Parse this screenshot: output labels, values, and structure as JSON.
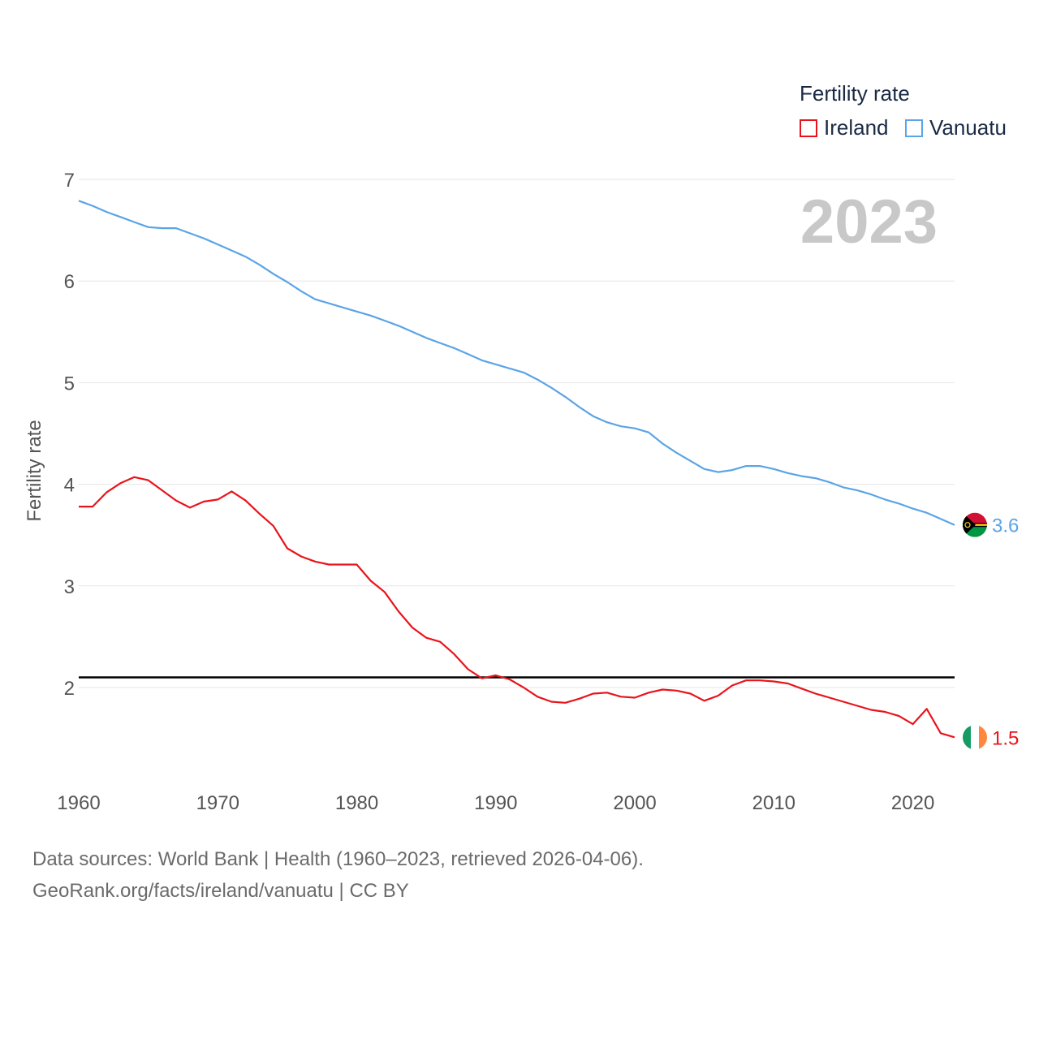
{
  "legend": {
    "title": "Fertility rate",
    "items": [
      {
        "label": "Ireland",
        "color": "#e8141b"
      },
      {
        "label": "Vanuatu",
        "color": "#5ba4e6"
      }
    ]
  },
  "year_label": "2023",
  "source": {
    "line1": "Data sources: World Bank | Health (1960–2023, retrieved 2026-04-06).",
    "line2": "GeoRank.org/facts/ireland/vanuatu | CC BY"
  },
  "chart_data": {
    "type": "line",
    "title": "Fertility rate",
    "xlabel": "",
    "ylabel": "Fertility rate",
    "xlim": [
      1960,
      2023
    ],
    "ylim": [
      1.3,
      7.0
    ],
    "xticks": [
      1960,
      1970,
      1980,
      1990,
      2000,
      2010,
      2020
    ],
    "yticks": [
      2,
      3,
      4,
      5,
      6,
      7
    ],
    "grid": true,
    "reference_line": 2.1,
    "x": [
      1960,
      1961,
      1962,
      1963,
      1964,
      1965,
      1966,
      1967,
      1968,
      1969,
      1970,
      1971,
      1972,
      1973,
      1974,
      1975,
      1976,
      1977,
      1978,
      1979,
      1980,
      1981,
      1982,
      1983,
      1984,
      1985,
      1986,
      1987,
      1988,
      1989,
      1990,
      1991,
      1992,
      1993,
      1994,
      1995,
      1996,
      1997,
      1998,
      1999,
      2000,
      2001,
      2002,
      2003,
      2004,
      2005,
      2006,
      2007,
      2008,
      2009,
      2010,
      2011,
      2012,
      2013,
      2014,
      2015,
      2016,
      2017,
      2018,
      2019,
      2020,
      2021,
      2022,
      2023
    ],
    "series": [
      {
        "name": "Ireland",
        "color": "#e8141b",
        "end_label": "1.5",
        "values": [
          3.78,
          3.78,
          3.92,
          4.01,
          4.07,
          4.04,
          3.94,
          3.84,
          3.77,
          3.83,
          3.85,
          3.93,
          3.84,
          3.71,
          3.59,
          3.37,
          3.29,
          3.24,
          3.21,
          3.21,
          3.21,
          3.05,
          2.94,
          2.75,
          2.59,
          2.49,
          2.45,
          2.33,
          2.18,
          2.09,
          2.12,
          2.08,
          2.0,
          1.91,
          1.86,
          1.85,
          1.89,
          1.94,
          1.95,
          1.91,
          1.9,
          1.95,
          1.98,
          1.97,
          1.94,
          1.87,
          1.92,
          2.02,
          2.07,
          2.07,
          2.06,
          2.04,
          1.99,
          1.94,
          1.9,
          1.86,
          1.82,
          1.78,
          1.76,
          1.72,
          1.64,
          1.79,
          1.55,
          1.51
        ]
      },
      {
        "name": "Vanuatu",
        "color": "#5ba4e6",
        "end_label": "3.6",
        "values": [
          6.79,
          6.74,
          6.68,
          6.63,
          6.58,
          6.53,
          6.52,
          6.52,
          6.47,
          6.42,
          6.36,
          6.3,
          6.24,
          6.16,
          6.07,
          5.99,
          5.9,
          5.82,
          5.78,
          5.74,
          5.7,
          5.66,
          5.61,
          5.56,
          5.5,
          5.44,
          5.39,
          5.34,
          5.28,
          5.22,
          5.18,
          5.14,
          5.1,
          5.03,
          4.95,
          4.86,
          4.76,
          4.67,
          4.61,
          4.57,
          4.55,
          4.51,
          4.4,
          4.31,
          4.23,
          4.15,
          4.12,
          4.14,
          4.18,
          4.18,
          4.15,
          4.11,
          4.08,
          4.06,
          4.02,
          3.97,
          3.94,
          3.9,
          3.85,
          3.81,
          3.76,
          3.72,
          3.66,
          3.6
        ]
      }
    ]
  }
}
